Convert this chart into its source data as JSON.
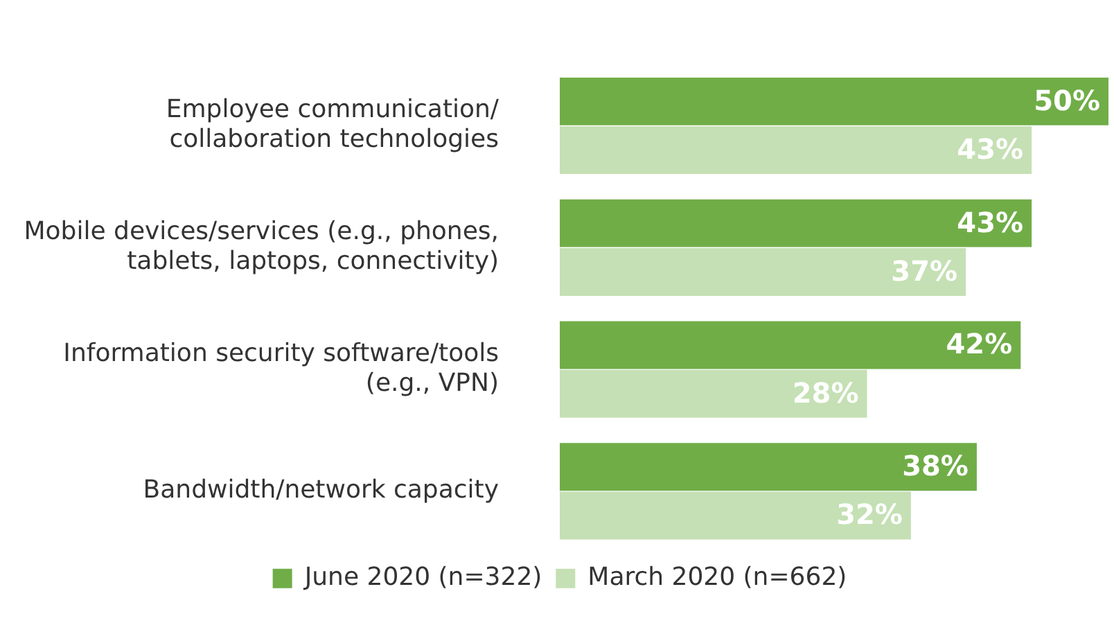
{
  "chart_data": {
    "type": "bar",
    "orientation": "horizontal",
    "categories": [
      "Employee communication/\ncollaboration technologies",
      "Mobile devices/services (e.g., phones,\ntablets, laptops, connectivity)",
      "Information security software/tools\n(e.g., VPN)",
      "Bandwidth/network capacity"
    ],
    "series": [
      {
        "name": "June 2020 (n=322)",
        "color": "#70ad47",
        "values": [
          50,
          43,
          42,
          38
        ],
        "value_labels": [
          "50%",
          "43%",
          "42%",
          "38%"
        ]
      },
      {
        "name": "March 2020 (n=662)",
        "color": "#c5e0b4",
        "values": [
          43,
          37,
          28,
          32
        ],
        "value_labels": [
          "43%",
          "37%",
          "28%",
          "32%"
        ]
      }
    ],
    "legend": "bottom"
  }
}
